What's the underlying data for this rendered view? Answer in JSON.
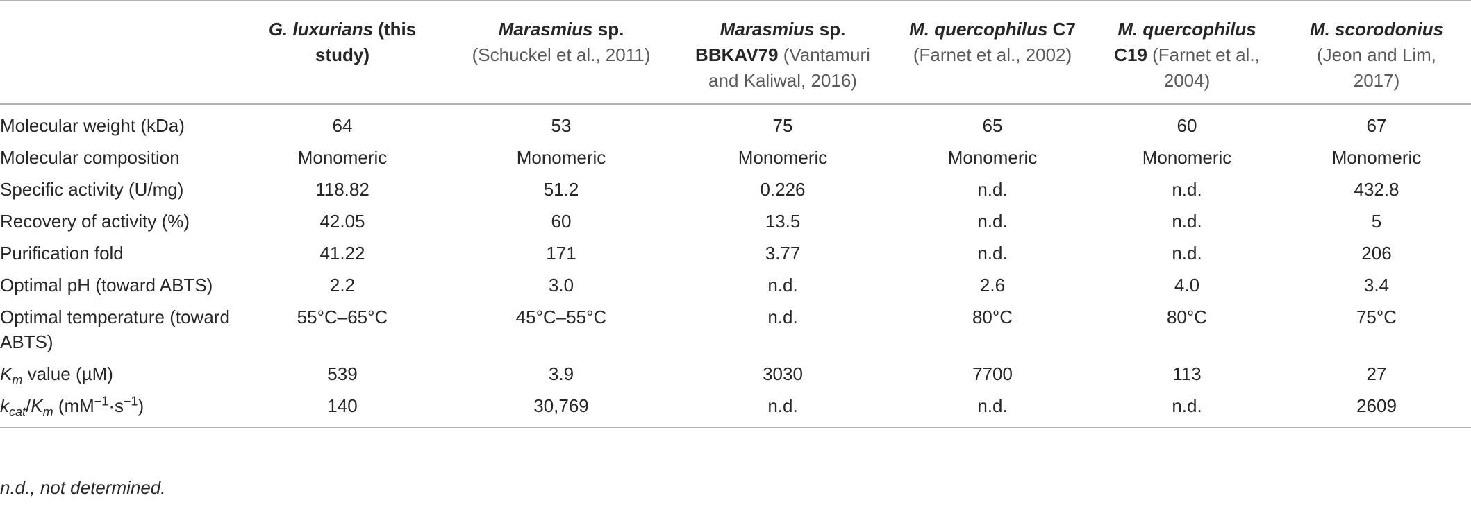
{
  "headers": [
    {
      "species_italic": "G. luxurians",
      "species_rest": " (this study)",
      "reference": ""
    },
    {
      "species_italic": "Marasmius",
      "species_rest": " sp.",
      "reference": "(Schuckel et al., 2011)"
    },
    {
      "species_italic": "Marasmius",
      "species_rest": " sp. BBKAV79",
      "reference": " (Vantamuri and Kaliwal, 2016)"
    },
    {
      "species_italic": "M. quercophilus",
      "species_rest": " C7",
      "reference": "(Farnet et al., 2002)"
    },
    {
      "species_italic": "M. quercophilus",
      "species_rest": " C19",
      "reference": " (Farnet et al., 2004)"
    },
    {
      "species_italic": "M. scorodonius",
      "species_rest": "",
      "reference": "(Jeon and Lim, 2017)"
    }
  ],
  "rows": [
    {
      "label": "Molecular weight (kDa)",
      "values": [
        "64",
        "53",
        "75",
        "65",
        "60",
        "67"
      ]
    },
    {
      "label": "Molecular composition",
      "values": [
        "Monomeric",
        "Monomeric",
        "Monomeric",
        "Monomeric",
        "Monomeric",
        "Monomeric"
      ]
    },
    {
      "label": "Specific activity (U/mg)",
      "values": [
        "118.82",
        "51.2",
        "0.226",
        "n.d.",
        "n.d.",
        "432.8"
      ]
    },
    {
      "label": "Recovery of activity (%)",
      "values": [
        "42.05",
        "60",
        "13.5",
        "n.d.",
        "n.d.",
        "5"
      ]
    },
    {
      "label": "Purification fold",
      "values": [
        "41.22",
        "171",
        "3.77",
        "n.d.",
        "n.d.",
        "206"
      ]
    },
    {
      "label": "Optimal pH (toward ABTS)",
      "values": [
        "2.2",
        "3.0",
        "n.d.",
        "2.6",
        "4.0",
        "3.4"
      ]
    },
    {
      "label": "Optimal temperature (toward ABTS)",
      "values": [
        "55°C–65°C",
        "45°C–55°C",
        "n.d.",
        "80°C",
        "80°C",
        "75°C"
      ]
    },
    {
      "label_parts": {
        "k": "K",
        "sub": "m",
        "rest": " value (µM)"
      },
      "values": [
        "539",
        "3.9",
        "3030",
        "7700",
        "113",
        "27"
      ]
    },
    {
      "label_parts": {
        "k": "k",
        "sub": "cat",
        "slash": "/",
        "k2": "K",
        "sub2": "m",
        "unit_open": " (mM",
        "sup1": "−1",
        "dot": "·s",
        "sup2": "−1",
        "unit_close": ")"
      },
      "values": [
        "140",
        "30,769",
        "n.d.",
        "n.d.",
        "n.d.",
        "2609"
      ]
    }
  ],
  "footnote": "n.d., not determined."
}
